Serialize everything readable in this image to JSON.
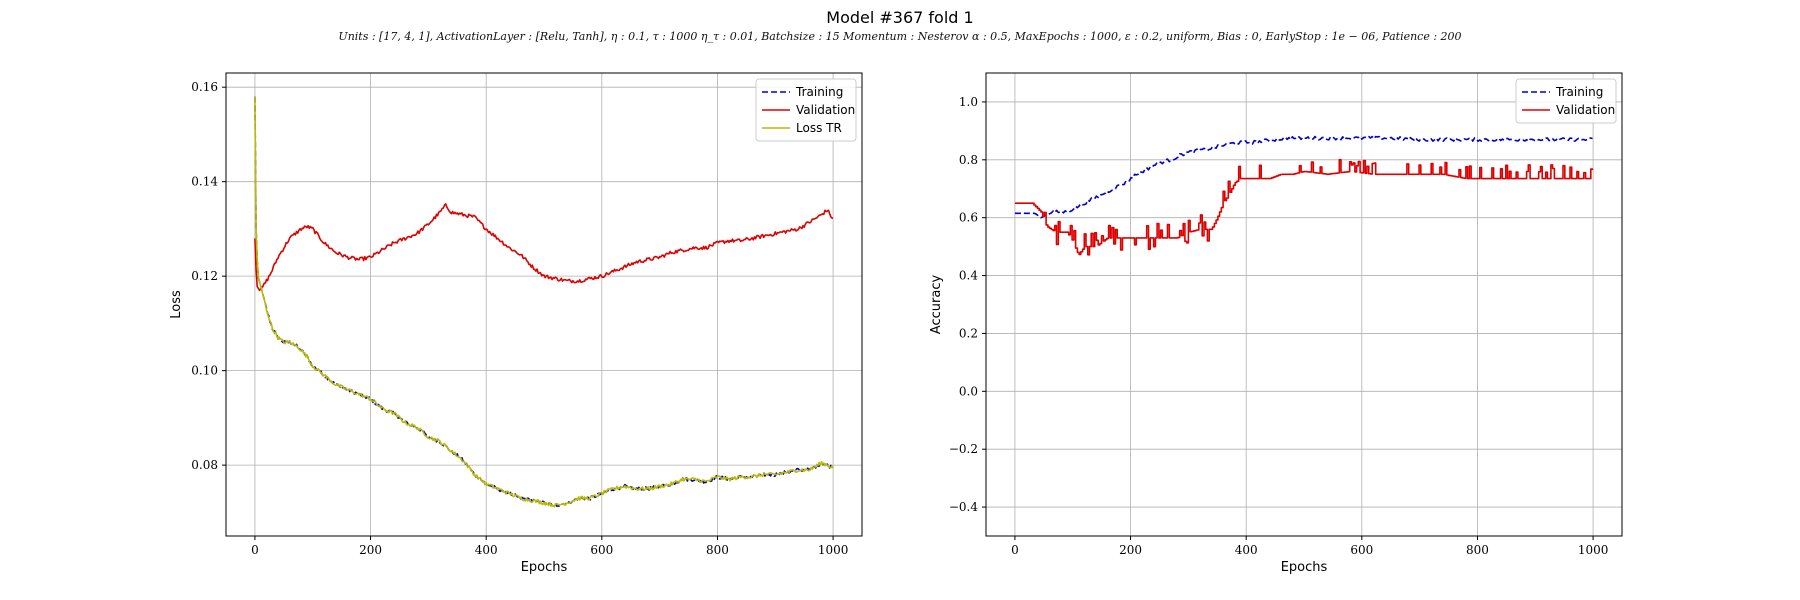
{
  "figure": {
    "title": "Model #367 fold 1",
    "subtitle": "Units : [17, 4, 1], ActivationLayer : [Relu, Tanh], η : 0.1, τ : 1000 η_τ : 0.01, Batchsize : 15 Momentum : Nesterov α : 0.5, MaxEpochs : 1000, ε : 0.2, uniform, Bias : 0, EarlyStop : 1e − 06, Patience : 200"
  },
  "chart_data": [
    {
      "type": "line",
      "name": "loss",
      "title": "",
      "xlabel": "Epochs",
      "ylabel": "Loss",
      "xlim": [
        -50,
        1050
      ],
      "ylim": [
        0.065,
        0.163
      ],
      "xticks": [
        0,
        200,
        400,
        600,
        800,
        1000
      ],
      "xtick_labels": [
        "0",
        "200",
        "400",
        "600",
        "800",
        "1000"
      ],
      "yticks": [
        0.08,
        0.1,
        0.12,
        0.14,
        0.16
      ],
      "ytick_labels": [
        "0.08",
        "0.10",
        "0.12",
        "0.14",
        "0.16"
      ],
      "grid": true,
      "legend": "top-right",
      "series": [
        {
          "name": "Training",
          "color": "#0000cc",
          "style": "dashed",
          "x": [
            0,
            2,
            5,
            10,
            20,
            30,
            40,
            50,
            60,
            75,
            90,
            100,
            120,
            140,
            160,
            180,
            200,
            220,
            240,
            260,
            280,
            300,
            320,
            340,
            360,
            380,
            400,
            420,
            440,
            460,
            480,
            500,
            520,
            540,
            560,
            580,
            600,
            620,
            640,
            660,
            680,
            700,
            720,
            740,
            760,
            780,
            800,
            820,
            840,
            860,
            880,
            900,
            920,
            940,
            960,
            980,
            1000
          ],
          "y": [
            0.158,
            0.13,
            0.12,
            0.118,
            0.113,
            0.109,
            0.107,
            0.106,
            0.106,
            0.105,
            0.103,
            0.101,
            0.099,
            0.097,
            0.096,
            0.095,
            0.094,
            0.092,
            0.091,
            0.089,
            0.088,
            0.086,
            0.085,
            0.083,
            0.081,
            0.078,
            0.076,
            0.075,
            0.074,
            0.073,
            0.0725,
            0.072,
            0.0715,
            0.072,
            0.073,
            0.073,
            0.074,
            0.075,
            0.0755,
            0.075,
            0.075,
            0.0755,
            0.076,
            0.077,
            0.077,
            0.0765,
            0.0775,
            0.077,
            0.0775,
            0.0775,
            0.078,
            0.078,
            0.0785,
            0.079,
            0.079,
            0.0805,
            0.0795
          ]
        },
        {
          "name": "Validation",
          "color": "#dd0000",
          "style": "solid",
          "x": [
            0,
            3,
            8,
            15,
            25,
            40,
            60,
            80,
            90,
            100,
            120,
            140,
            160,
            180,
            200,
            220,
            240,
            260,
            280,
            300,
            320,
            330,
            340,
            360,
            380,
            400,
            420,
            440,
            460,
            480,
            500,
            520,
            540,
            560,
            580,
            600,
            620,
            640,
            660,
            680,
            700,
            720,
            740,
            760,
            780,
            800,
            820,
            840,
            860,
            880,
            900,
            920,
            940,
            960,
            980,
            990,
            1000
          ],
          "y": [
            0.128,
            0.118,
            0.117,
            0.118,
            0.12,
            0.124,
            0.128,
            0.13,
            0.1305,
            0.13,
            0.127,
            0.125,
            0.124,
            0.1235,
            0.124,
            0.1255,
            0.127,
            0.128,
            0.129,
            0.131,
            0.1335,
            0.135,
            0.1335,
            0.133,
            0.1325,
            0.13,
            0.128,
            0.126,
            0.1245,
            0.122,
            0.12,
            0.1195,
            0.119,
            0.119,
            0.1195,
            0.12,
            0.121,
            0.122,
            0.123,
            0.1235,
            0.124,
            0.125,
            0.1255,
            0.126,
            0.126,
            0.127,
            0.1275,
            0.1275,
            0.128,
            0.1285,
            0.129,
            0.1295,
            0.13,
            0.1315,
            0.133,
            0.134,
            0.132
          ]
        },
        {
          "name": "Loss TR",
          "color": "#bbbb00",
          "style": "solid",
          "x": [
            0,
            2,
            5,
            10,
            20,
            30,
            40,
            50,
            60,
            75,
            90,
            100,
            120,
            140,
            160,
            180,
            200,
            220,
            240,
            260,
            280,
            300,
            320,
            340,
            360,
            380,
            400,
            420,
            440,
            460,
            480,
            500,
            520,
            540,
            560,
            580,
            600,
            620,
            640,
            660,
            680,
            700,
            720,
            740,
            760,
            780,
            800,
            820,
            840,
            860,
            880,
            900,
            920,
            940,
            960,
            980,
            1000
          ],
          "y": [
            0.158,
            0.13,
            0.12,
            0.118,
            0.113,
            0.109,
            0.107,
            0.106,
            0.106,
            0.105,
            0.103,
            0.101,
            0.099,
            0.097,
            0.096,
            0.095,
            0.094,
            0.092,
            0.091,
            0.089,
            0.088,
            0.086,
            0.085,
            0.083,
            0.081,
            0.078,
            0.076,
            0.075,
            0.074,
            0.073,
            0.0725,
            0.072,
            0.0715,
            0.072,
            0.073,
            0.073,
            0.074,
            0.075,
            0.0755,
            0.075,
            0.075,
            0.0755,
            0.076,
            0.077,
            0.077,
            0.0765,
            0.0775,
            0.077,
            0.0775,
            0.0775,
            0.078,
            0.078,
            0.0785,
            0.079,
            0.079,
            0.0805,
            0.0795
          ]
        }
      ]
    },
    {
      "type": "line",
      "name": "accuracy",
      "title": "",
      "xlabel": "Epochs",
      "ylabel": "Accuracy",
      "xlim": [
        -50,
        1050
      ],
      "ylim": [
        -0.5,
        1.1
      ],
      "xticks": [
        0,
        200,
        400,
        600,
        800,
        1000
      ],
      "xtick_labels": [
        "0",
        "200",
        "400",
        "600",
        "800",
        "1000"
      ],
      "yticks": [
        -0.4,
        -0.2,
        0.0,
        0.2,
        0.4,
        0.6,
        0.8,
        1.0
      ],
      "ytick_labels": [
        "−0.4",
        "−0.2",
        "0.0",
        "0.2",
        "0.4",
        "0.6",
        "0.8",
        "1.0"
      ],
      "grid": true,
      "legend": "top-right",
      "series": [
        {
          "name": "Training",
          "color": "#0000cc",
          "style": "dashed",
          "x": [
            0,
            20,
            35,
            45,
            55,
            70,
            90,
            110,
            130,
            150,
            170,
            190,
            210,
            230,
            250,
            270,
            290,
            310,
            330,
            350,
            370,
            390,
            410,
            430,
            450,
            470,
            500,
            550,
            600,
            650,
            700,
            750,
            800,
            850,
            900,
            950,
            1000
          ],
          "y": [
            0.615,
            0.615,
            0.615,
            0.6,
            0.61,
            0.62,
            0.62,
            0.64,
            0.66,
            0.68,
            0.7,
            0.72,
            0.75,
            0.77,
            0.79,
            0.8,
            0.82,
            0.83,
            0.835,
            0.845,
            0.855,
            0.86,
            0.86,
            0.865,
            0.87,
            0.875,
            0.875,
            0.875,
            0.875,
            0.875,
            0.87,
            0.87,
            0.87,
            0.87,
            0.87,
            0.87,
            0.87
          ]
        },
        {
          "name": "Validation",
          "color": "#dd0000",
          "style": "solid",
          "x": [
            0,
            30,
            45,
            55,
            70,
            90,
            100,
            110,
            120,
            140,
            160,
            180,
            200,
            240,
            280,
            300,
            320,
            340,
            350,
            360,
            370,
            380,
            390,
            420,
            440,
            460,
            480,
            500,
            540,
            580,
            620,
            660,
            700,
            740,
            780,
            820,
            860,
            900,
            940,
            980,
            1000
          ],
          "y": [
            0.65,
            0.65,
            0.62,
            0.57,
            0.55,
            0.55,
            0.52,
            0.47,
            0.5,
            0.5,
            0.53,
            0.53,
            0.53,
            0.53,
            0.53,
            0.55,
            0.56,
            0.56,
            0.6,
            0.65,
            0.68,
            0.72,
            0.735,
            0.735,
            0.735,
            0.75,
            0.75,
            0.76,
            0.75,
            0.76,
            0.75,
            0.75,
            0.75,
            0.75,
            0.735,
            0.735,
            0.735,
            0.735,
            0.735,
            0.735,
            0.735
          ]
        }
      ]
    }
  ]
}
